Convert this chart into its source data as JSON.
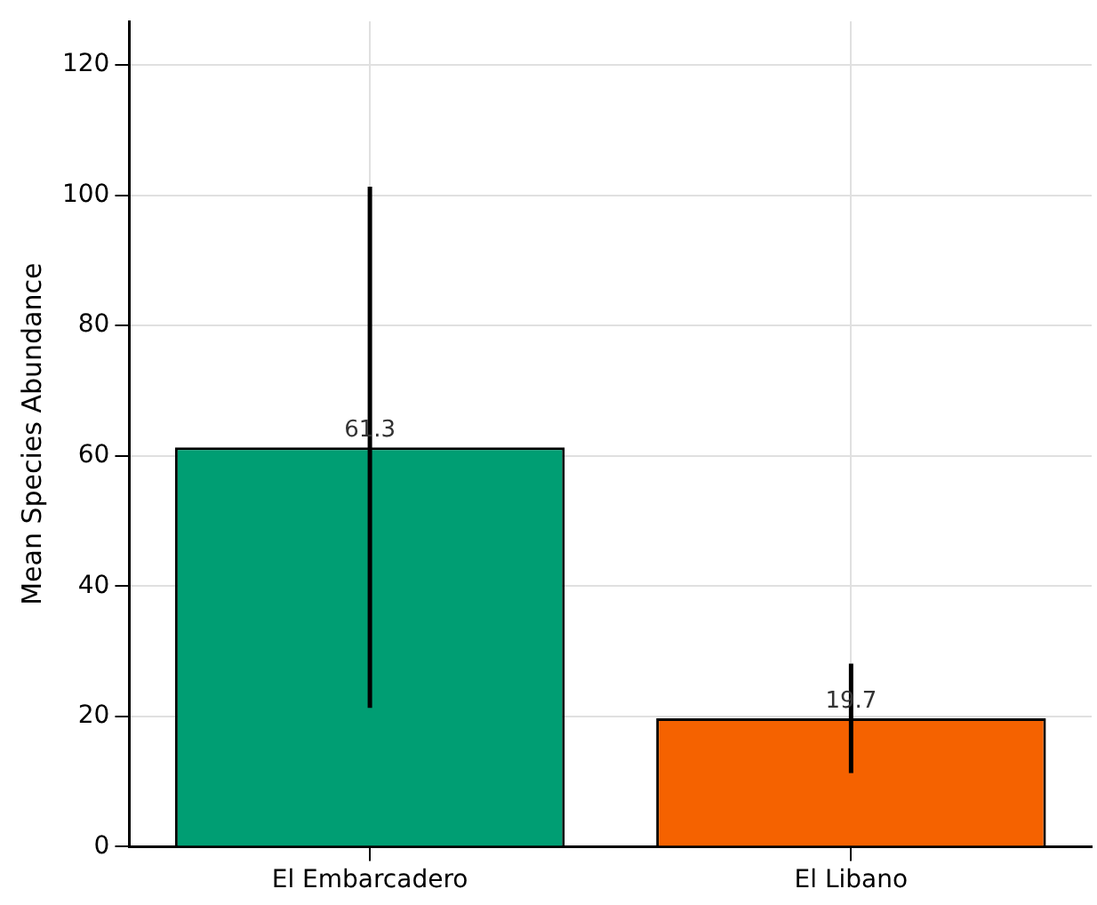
{
  "chart_data": {
    "type": "bar",
    "ylabel": "Mean Species Abundance",
    "categories": [
      "El Embarcadero",
      "El Libano"
    ],
    "values": [
      61.3,
      19.7
    ],
    "colors": [
      "#009e73",
      "#f56200"
    ],
    "errors": [
      40,
      8.4
    ],
    "ylim": [
      0,
      126.7
    ],
    "yticks": [
      0,
      20,
      40,
      60,
      80,
      100,
      120
    ],
    "grid": true,
    "data_labels": true
  }
}
